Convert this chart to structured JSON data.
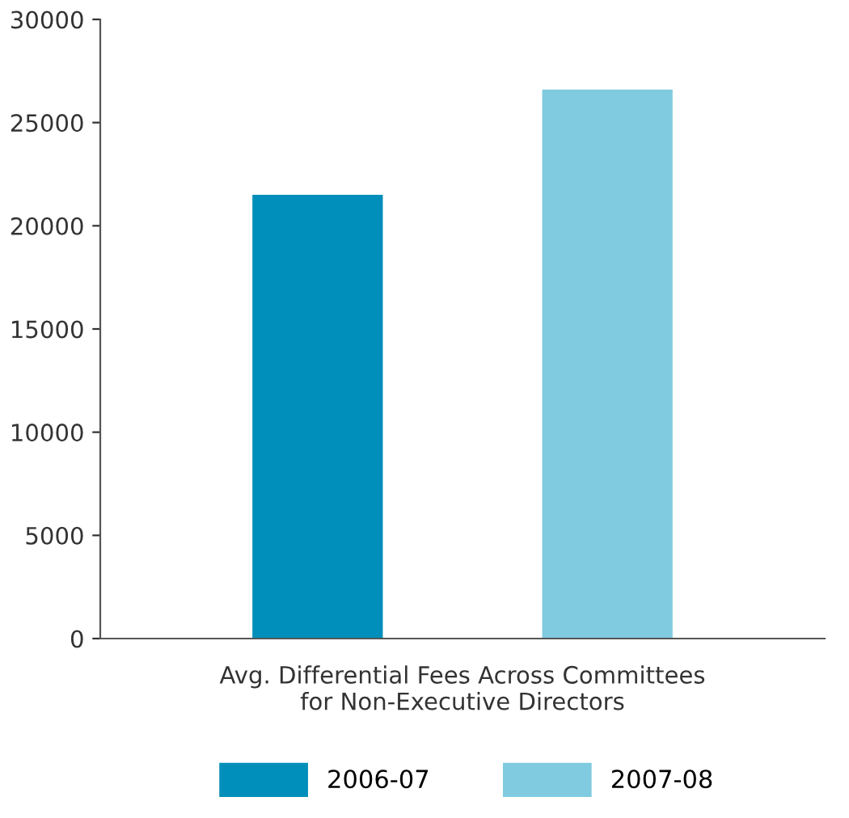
{
  "chart_data": {
    "type": "bar",
    "categories": [
      "Avg. Differential Fees Across Committees\nfor Non-Executive Directors"
    ],
    "series": [
      {
        "name": "2006-07",
        "color": "#008fba",
        "values": [
          21500
        ]
      },
      {
        "name": "2007-08",
        "color": "#80cbdf",
        "values": [
          26600
        ]
      }
    ],
    "ylim": [
      0,
      30000
    ],
    "yticks": [
      0,
      5000,
      10000,
      15000,
      20000,
      25000,
      30000
    ],
    "grid": false,
    "legend": "bottom"
  }
}
